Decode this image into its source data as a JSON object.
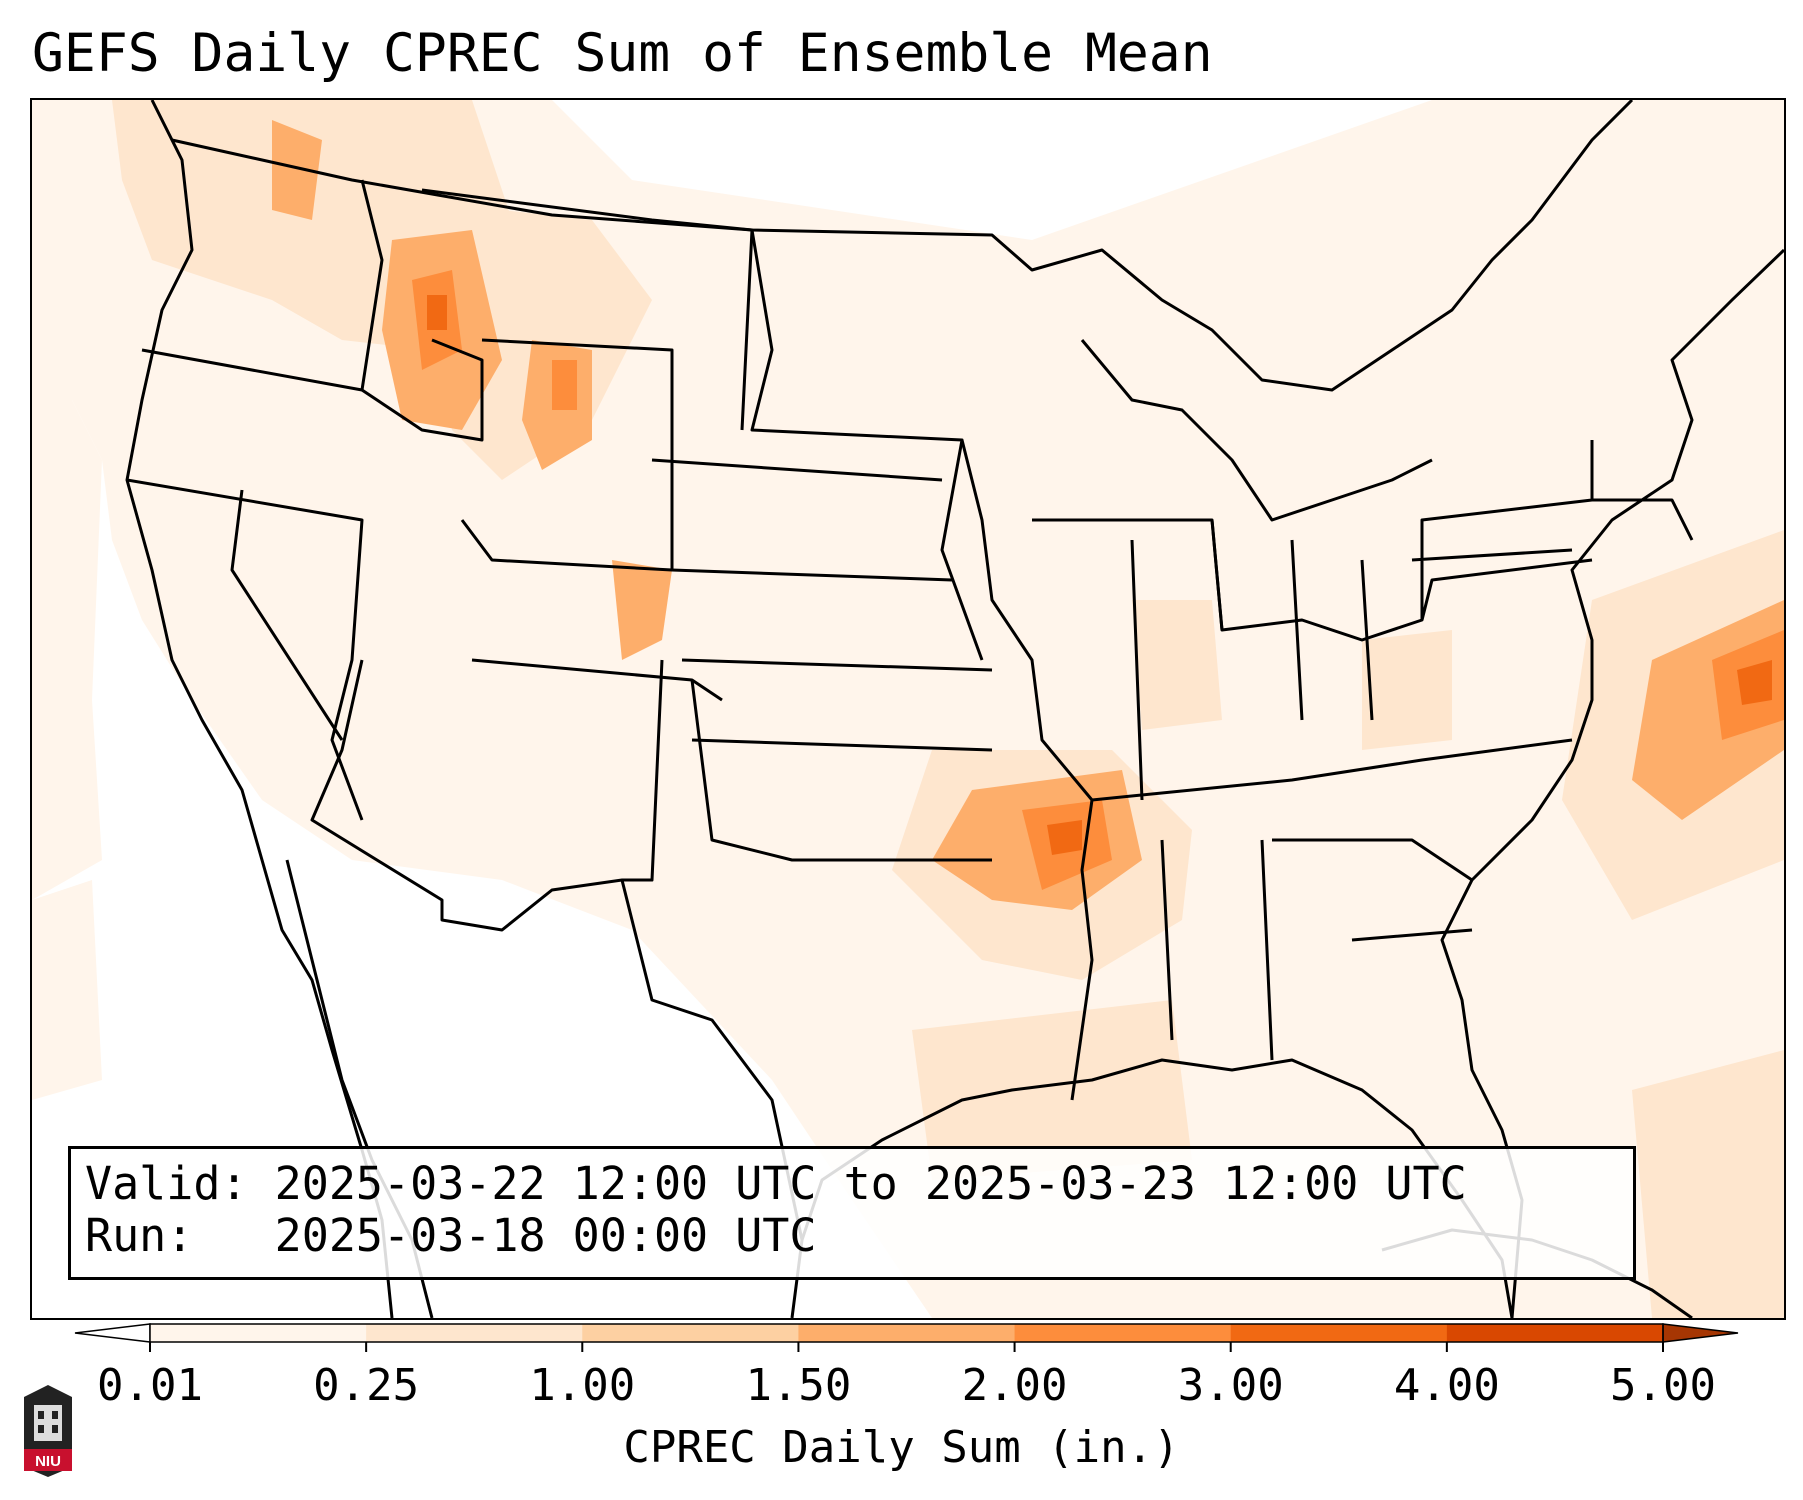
{
  "title": "GEFS Daily CPREC Sum of Ensemble Mean",
  "info": {
    "valid": "Valid: 2025-03-22 12:00 UTC to 2025-03-23 12:00 UTC",
    "run": "Run:   2025-03-18 00:00 UTC"
  },
  "colorbar": {
    "label": "CPREC Daily Sum (in.)",
    "ticks": [
      "0.01",
      "0.25",
      "1.00",
      "1.50",
      "2.00",
      "3.00",
      "4.00",
      "5.00"
    ],
    "colors": [
      "#fff5eb",
      "#fee6ce",
      "#fdd0a2",
      "#fdae6b",
      "#fd8d3c",
      "#f16913",
      "#d94801"
    ],
    "under_color": "#ffffff",
    "over_color": "#a63603",
    "extend": "both"
  },
  "logo": {
    "icon": "niu-logo-icon",
    "text": "NIU",
    "color": "#c8102e"
  },
  "map": {
    "projection": "Lambert conformal, CONUS",
    "background_color": "#ffffff",
    "precip_maxima": [
      {
        "region": "Idaho / western Montana",
        "level": "1.50-3.00"
      },
      {
        "region": "Northwest Wyoming",
        "level": "1.00-2.00"
      },
      {
        "region": "Western Colorado",
        "level": "1.00-2.00"
      },
      {
        "region": "Arkansas / eastern Oklahoma",
        "level": "2.00-3.00"
      },
      {
        "region": "Western Atlantic off Mid-Atlantic coast",
        "level": "2.00-3.00"
      },
      {
        "region": "Gulf of Mexico / Southeast",
        "level": "0.25-1.00"
      }
    ]
  }
}
